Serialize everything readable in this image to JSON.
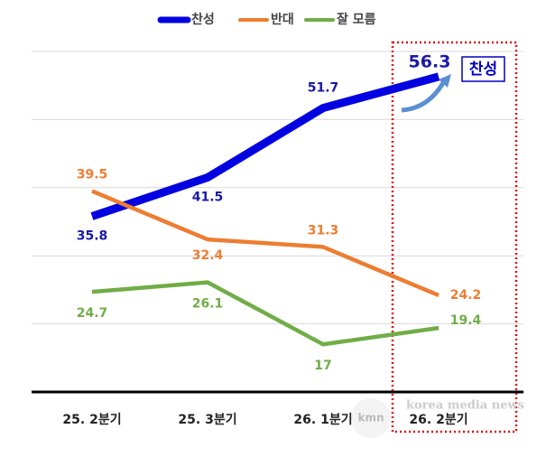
{
  "chart_data": {
    "type": "line",
    "categories": [
      "25. 2분기",
      "25. 3분기",
      "26. 1분기",
      "26. 2분기"
    ],
    "series": [
      {
        "name": "찬성",
        "color": "#0000e0",
        "values": [
          35.8,
          41.5,
          51.7,
          56.3
        ]
      },
      {
        "name": "반대",
        "color": "#ed7d31",
        "values": [
          39.5,
          32.4,
          31.3,
          24.2
        ]
      },
      {
        "name": "잘 모름",
        "color": "#70ad47",
        "values": [
          24.7,
          26.1,
          17,
          19.4
        ]
      }
    ],
    "ylim": [
      10,
      60
    ],
    "yticks": [
      10,
      20,
      30,
      40,
      50,
      60
    ],
    "grid": true,
    "annotation": "찬성",
    "watermark": [
      "kmn",
      "korea media news"
    ]
  }
}
